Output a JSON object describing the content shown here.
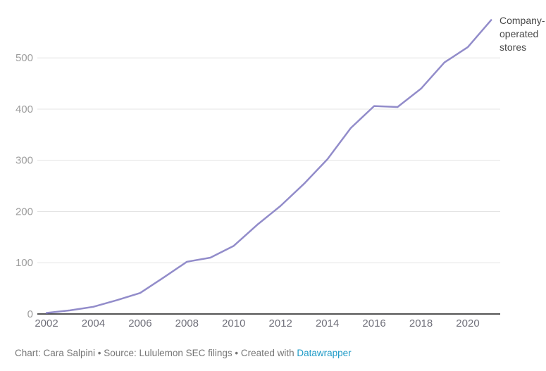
{
  "chart_data": {
    "type": "line",
    "title": "",
    "series_label": "Company-operated stores",
    "x": [
      2002,
      2003,
      2004,
      2005,
      2006,
      2007,
      2008,
      2009,
      2010,
      2011,
      2012,
      2013,
      2014,
      2015,
      2016,
      2017,
      2018,
      2019,
      2020,
      2021
    ],
    "values": [
      2,
      7,
      14,
      27,
      41,
      71,
      102,
      110,
      133,
      174,
      211,
      254,
      302,
      363,
      406,
      404,
      440,
      491,
      521,
      574
    ],
    "xlabel": "",
    "ylabel": "",
    "ylim": [
      0,
      580
    ],
    "yticks": [
      0,
      100,
      200,
      300,
      400,
      500
    ],
    "xticks": [
      2002,
      2004,
      2006,
      2008,
      2010,
      2012,
      2014,
      2016,
      2018,
      2020
    ],
    "grid": "horizontal",
    "legend_position": "end-of-line-label",
    "line_color": "#928cca",
    "gridline_color": "#e4e4e4",
    "axis_line_color": "#1d1d1d",
    "y_tick_color": "#9d9d9d",
    "x_tick_color": "#70707a",
    "series_label_color": "#494949"
  },
  "footer": {
    "text": "Chart: Cara Salpini • Source: Lululemon SEC filings • Created with ",
    "link_label": "Datawrapper",
    "text_color": "#767676",
    "link_color": "#1f9bc7"
  }
}
